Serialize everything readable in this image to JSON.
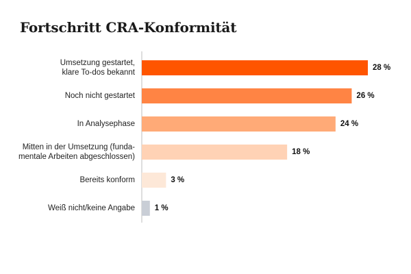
{
  "chart_data": {
    "type": "bar",
    "orientation": "horizontal",
    "title": "Fortschritt CRA-Konformität",
    "categories": [
      [
        "Umsetzung gestartet,",
        "klare To-dos bekannt"
      ],
      [
        "Noch nicht gestartet"
      ],
      [
        "In Analysephase"
      ],
      [
        "Mitten in der Umsetzung (funda-",
        "mentale Arbeiten abgeschlossen)"
      ],
      [
        "Bereits konform"
      ],
      [
        "Weiß nicht/keine Angabe"
      ]
    ],
    "values": [
      28,
      26,
      24,
      18,
      3,
      1
    ],
    "value_labels": [
      "28 %",
      "26 %",
      "24 %",
      "18 %",
      "3 %",
      "1 %"
    ],
    "colors": [
      "#ff5500",
      "#ff8444",
      "#ffaa77",
      "#ffd2b5",
      "#fde8d8",
      "#c9ced6"
    ],
    "xlim": [
      0,
      28
    ],
    "grid": false,
    "legend": "none"
  }
}
